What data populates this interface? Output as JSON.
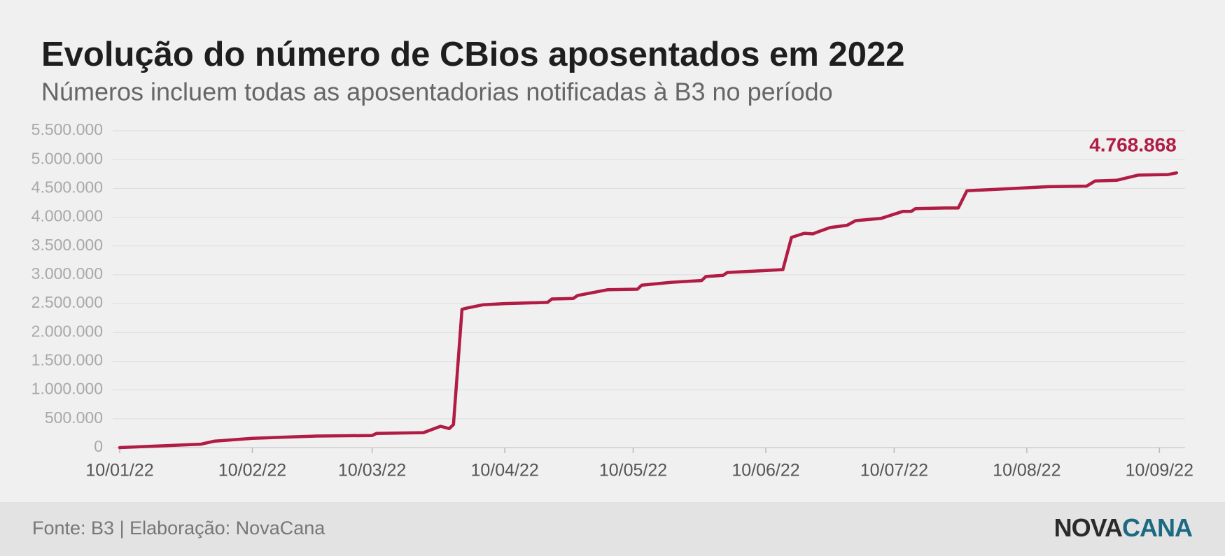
{
  "chart_data": {
    "type": "line",
    "title": "Evolução do número de CBios aposentados em 2022",
    "subtitle": "Números incluem todas as aposentadorias notificadas à B3 no período",
    "x": [
      "2022-01-10",
      "2022-01-29",
      "2022-02-01",
      "2022-02-10",
      "2022-02-19",
      "2022-02-25",
      "2022-03-10",
      "2022-03-11",
      "2022-03-22",
      "2022-03-26",
      "2022-03-28",
      "2022-03-29",
      "2022-03-31",
      "2022-04-01",
      "2022-04-05",
      "2022-04-10",
      "2022-04-20",
      "2022-04-21",
      "2022-04-26",
      "2022-04-27",
      "2022-05-04",
      "2022-05-11",
      "2022-05-12",
      "2022-05-19",
      "2022-05-26",
      "2022-05-27",
      "2022-05-31",
      "2022-06-01",
      "2022-06-09",
      "2022-06-14",
      "2022-06-16",
      "2022-06-19",
      "2022-06-21",
      "2022-06-22",
      "2022-06-25",
      "2022-06-29",
      "2022-07-01",
      "2022-07-07",
      "2022-07-12",
      "2022-07-14",
      "2022-07-15",
      "2022-07-22",
      "2022-07-25",
      "2022-07-27",
      "2022-08-02",
      "2022-08-10",
      "2022-08-15",
      "2022-08-24",
      "2022-08-26",
      "2022-08-31",
      "2022-09-05",
      "2022-09-12",
      "2022-09-14"
    ],
    "series": [
      {
        "name": "CBios aposentados",
        "color": "#b01c44",
        "values": [
          0,
          60000,
          110000,
          160000,
          185000,
          200000,
          210000,
          245000,
          260000,
          370000,
          330000,
          400000,
          2400000,
          2420000,
          2480000,
          2500000,
          2520000,
          2580000,
          2590000,
          2640000,
          2740000,
          2750000,
          2820000,
          2870000,
          2900000,
          2970000,
          2990000,
          3040000,
          3070000,
          3090000,
          3650000,
          3720000,
          3710000,
          3740000,
          3820000,
          3860000,
          3940000,
          3980000,
          4100000,
          4100000,
          4150000,
          4160000,
          4160000,
          4460000,
          4480000,
          4510000,
          4530000,
          4540000,
          4630000,
          4640000,
          4730000,
          4740000,
          4768868
        ],
        "value_labels": [
          null,
          null,
          null,
          null,
          null,
          null,
          null,
          null,
          null,
          null,
          null,
          null,
          null,
          null,
          null,
          null,
          null,
          null,
          null,
          null,
          null,
          null,
          null,
          null,
          null,
          null,
          null,
          null,
          null,
          null,
          null,
          null,
          null,
          null,
          null,
          null,
          null,
          null,
          null,
          null,
          null,
          null,
          null,
          null,
          null,
          null,
          null,
          null,
          null,
          null,
          null,
          null,
          "4.768.868"
        ]
      }
    ],
    "xlim": [
      "2022-01-10",
      "2022-09-16"
    ],
    "xticks": [
      {
        "value": "2022-01-10",
        "label": "10/01/22"
      },
      {
        "value": "2022-02-10",
        "label": "10/02/22"
      },
      {
        "value": "2022-03-10",
        "label": "10/03/22"
      },
      {
        "value": "2022-04-10",
        "label": "10/04/22"
      },
      {
        "value": "2022-05-10",
        "label": "10/05/22"
      },
      {
        "value": "2022-06-10",
        "label": "10/06/22"
      },
      {
        "value": "2022-07-10",
        "label": "10/07/22"
      },
      {
        "value": "2022-08-10",
        "label": "10/08/22"
      },
      {
        "value": "2022-09-10",
        "label": "10/09/22"
      }
    ],
    "ylim": [
      0,
      5500000
    ],
    "yticks": [
      0,
      {
        "value": 500000,
        "label": "500.000"
      },
      {
        "value": 1000000,
        "label": "1.000.000"
      },
      {
        "value": 1500000,
        "label": "1.500.000"
      },
      {
        "value": 2000000,
        "label": "2.000.000"
      },
      {
        "value": 2500000,
        "label": "2.500.000"
      },
      {
        "value": 3000000,
        "label": "3.000.000"
      },
      {
        "value": 3500000,
        "label": "3.500.000"
      },
      {
        "value": 4000000,
        "label": "4.000.000"
      },
      {
        "value": 4500000,
        "label": "4.500.000"
      },
      {
        "value": 5000000,
        "label": "5.000.000"
      },
      {
        "value": 5500000,
        "label": "5.500.000"
      }
    ],
    "grid": true
  },
  "footer": {
    "source": "Fonte: B3 | Elaboração: NovaCana",
    "logo": [
      "NOVA",
      "CANA"
    ]
  }
}
